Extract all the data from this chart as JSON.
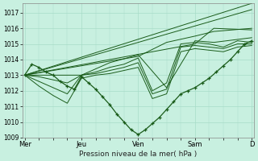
{
  "background_color": "#c8f0e0",
  "grid_color": "#a8dcc8",
  "line_color": "#1a5c1a",
  "marker_color": "#1a5c1a",
  "xlabel": "Pression niveau de la mer( hPa )",
  "ylim": [
    1009,
    1017.6
  ],
  "yticks": [
    1009,
    1010,
    1011,
    1012,
    1013,
    1014,
    1015,
    1016,
    1017
  ],
  "day_positions": [
    0,
    24,
    48,
    72,
    96
  ],
  "day_labels": [
    "Mer",
    "Jeu",
    "Ven",
    "Sam",
    "D"
  ],
  "ensemble": [
    {
      "x": [
        0,
        96
      ],
      "y": [
        1013.0,
        1017.6
      ]
    },
    {
      "x": [
        0,
        96
      ],
      "y": [
        1013.0,
        1017.2
      ]
    },
    {
      "x": [
        0,
        72,
        80,
        96
      ],
      "y": [
        1013.0,
        1015.0,
        1016.0,
        1015.9
      ]
    },
    {
      "x": [
        0,
        48,
        60,
        72,
        80,
        96
      ],
      "y": [
        1013.0,
        1014.2,
        1015.1,
        1015.5,
        1015.8,
        1016.0
      ]
    },
    {
      "x": [
        0,
        24,
        36,
        48,
        60,
        72,
        80,
        96
      ],
      "y": [
        1013.0,
        1013.0,
        1013.8,
        1014.3,
        1012.2,
        1015.2,
        1015.1,
        1015.4
      ]
    },
    {
      "x": [
        0,
        6,
        12,
        18,
        24,
        30,
        36,
        42,
        48,
        54,
        60,
        66,
        72,
        78,
        84,
        90,
        96
      ],
      "y": [
        1013.0,
        1012.9,
        1012.7,
        1012.5,
        1013.0,
        1013.2,
        1013.5,
        1013.7,
        1014.1,
        1012.0,
        1012.5,
        1015.0,
        1015.1,
        1015.0,
        1014.8,
        1015.2,
        1015.1
      ]
    },
    {
      "x": [
        0,
        6,
        12,
        18,
        24,
        30,
        36,
        42,
        48,
        54,
        60,
        66,
        72,
        78,
        84,
        90,
        96
      ],
      "y": [
        1013.0,
        1012.6,
        1012.2,
        1011.8,
        1013.0,
        1013.1,
        1013.3,
        1013.5,
        1013.8,
        1011.8,
        1012.1,
        1014.8,
        1014.9,
        1014.8,
        1014.7,
        1015.0,
        1015.0
      ]
    },
    {
      "x": [
        0,
        6,
        12,
        18,
        24,
        30,
        36,
        42,
        48,
        54,
        60,
        66,
        72,
        78,
        84,
        90,
        96
      ],
      "y": [
        1013.0,
        1012.3,
        1011.7,
        1011.2,
        1012.8,
        1013.0,
        1013.1,
        1013.3,
        1013.5,
        1011.5,
        1011.8,
        1014.5,
        1014.7,
        1014.6,
        1014.5,
        1014.8,
        1014.9
      ]
    }
  ],
  "main_x": [
    0,
    3,
    6,
    9,
    12,
    15,
    18,
    21,
    24,
    27,
    30,
    33,
    36,
    39,
    42,
    45,
    48,
    51,
    54,
    57,
    60,
    63,
    66,
    69,
    72,
    75,
    78,
    81,
    84,
    87,
    90,
    93,
    96
  ],
  "main_y": [
    1013.0,
    1013.7,
    1013.5,
    1013.2,
    1013.0,
    1012.6,
    1012.3,
    1012.1,
    1012.9,
    1012.5,
    1012.1,
    1011.6,
    1011.1,
    1010.5,
    1010.0,
    1009.5,
    1009.2,
    1009.5,
    1009.9,
    1010.3,
    1010.8,
    1011.3,
    1011.8,
    1012.0,
    1012.2,
    1012.5,
    1012.8,
    1013.2,
    1013.6,
    1014.0,
    1014.5,
    1015.0,
    1015.2
  ]
}
